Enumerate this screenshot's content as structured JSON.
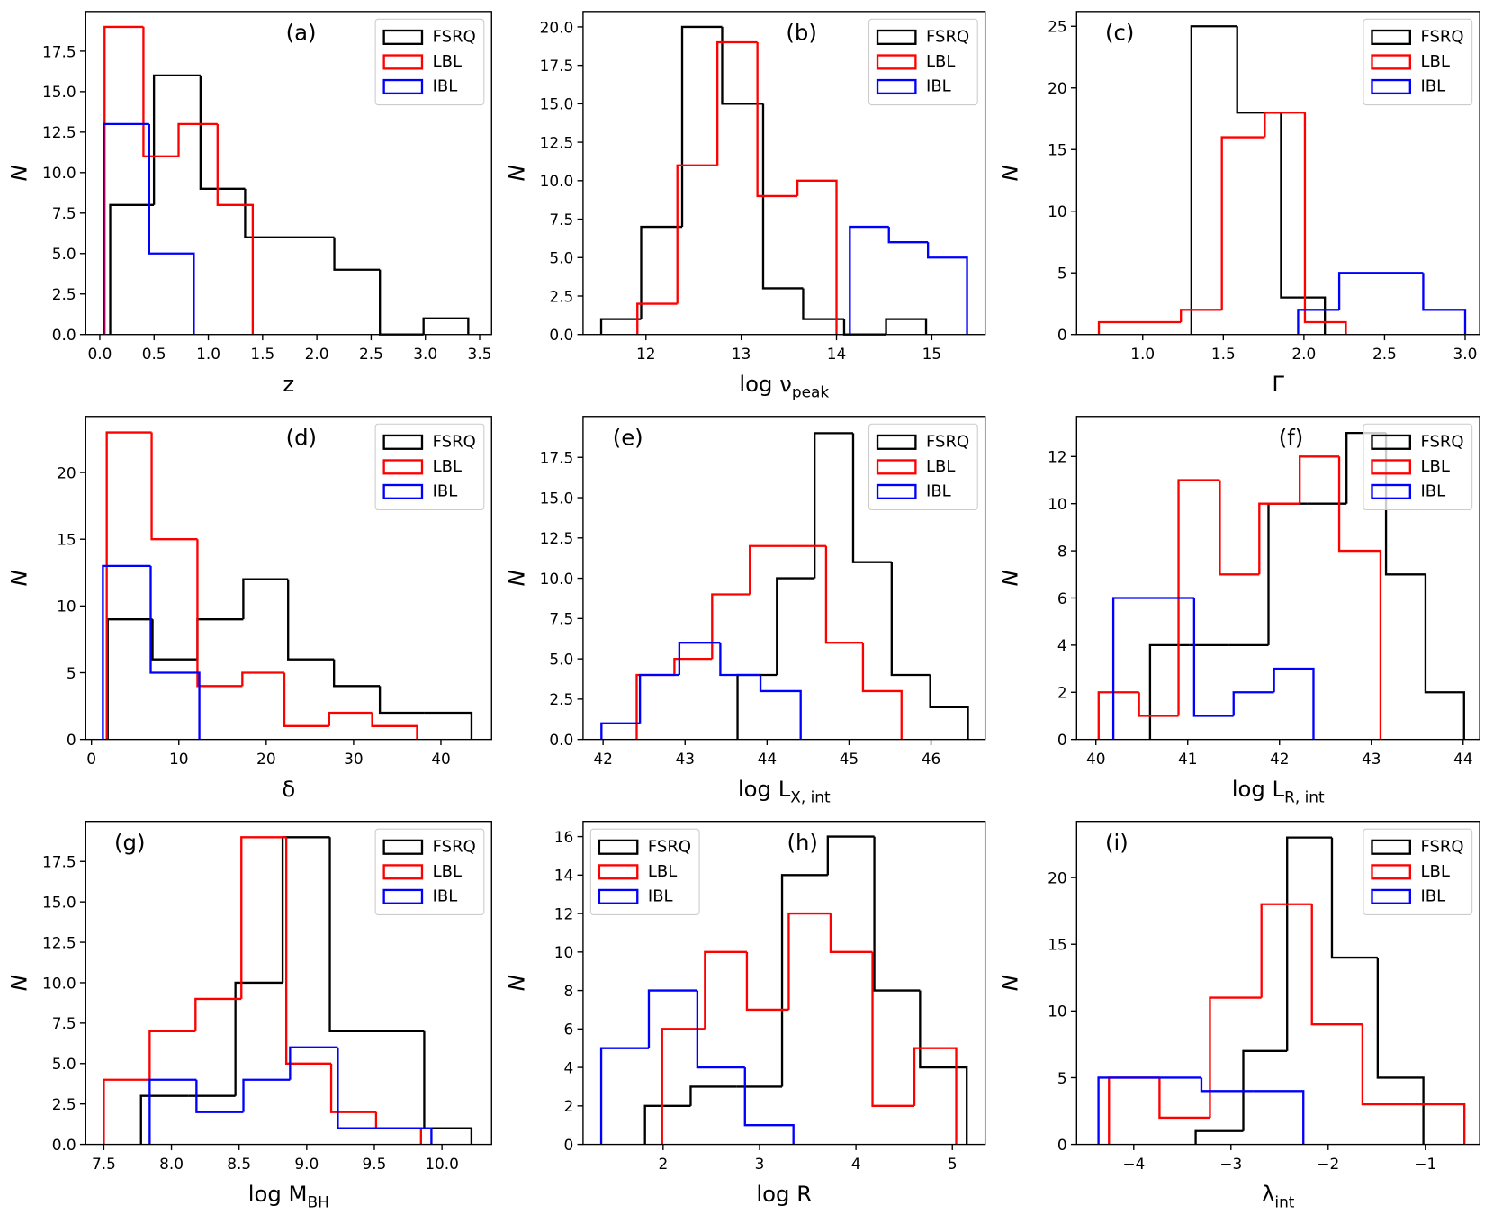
{
  "chart_data": [
    {
      "type": "histogram",
      "annotation": "(a)",
      "xlabel": "z",
      "ylabel": "N",
      "legend": "upper right",
      "xlim": [
        -0.13,
        3.61
      ],
      "ylim": [
        0,
        19.95
      ],
      "xticks": [
        {
          "value": 0,
          "label": "0.0"
        },
        {
          "value": 0.5,
          "label": "0.5"
        },
        {
          "value": 1,
          "label": "1.0"
        },
        {
          "value": 1.5,
          "label": "1.5"
        },
        {
          "value": 2,
          "label": "2.0"
        },
        {
          "value": 2.5,
          "label": "2.5"
        },
        {
          "value": 3,
          "label": "3.0"
        },
        {
          "value": 3.5,
          "label": "3.5"
        }
      ],
      "yticks": [
        {
          "value": 0,
          "label": "0.0"
        },
        {
          "value": 2.5,
          "label": "2.5"
        },
        {
          "value": 5,
          "label": "5.0"
        },
        {
          "value": 7.5,
          "label": "7.5"
        },
        {
          "value": 10,
          "label": "10.0"
        },
        {
          "value": 12.5,
          "label": "12.5"
        },
        {
          "value": 15,
          "label": "15.0"
        },
        {
          "value": 17.5,
          "label": "17.5"
        }
      ],
      "series": [
        {
          "name": "FSRQ",
          "color": "#000000",
          "bins": [
            0.096,
            0.499,
            0.928,
            1.339,
            1.75,
            2.161,
            2.581,
            2.983,
            3.395
          ],
          "values": [
            8,
            16,
            9,
            6,
            6,
            4,
            0,
            1
          ]
        },
        {
          "name": "LBL",
          "color": "#ff0000",
          "bins": [
            0.044,
            0.402,
            0.726,
            1.085,
            1.409
          ],
          "values": [
            19,
            11,
            13,
            8
          ]
        },
        {
          "name": "IBL",
          "color": "#0000ff",
          "bins": [
            0.035,
            0.455,
            0.866
          ],
          "values": [
            13,
            5
          ]
        }
      ]
    },
    {
      "type": "histogram",
      "annotation": "(b)",
      "xlabel": "log ν",
      "xlabel_sub": "peak",
      "ylabel": "N",
      "legend": "upper right",
      "xlim": [
        11.34,
        15.56
      ],
      "ylim": [
        0,
        21
      ],
      "xticks": [
        12,
        13,
        14,
        15
      ],
      "yticks": [
        {
          "value": 0,
          "label": "0.0"
        },
        {
          "value": 2.5,
          "label": "2.5"
        },
        {
          "value": 5,
          "label": "5.0"
        },
        {
          "value": 7.5,
          "label": "7.5"
        },
        {
          "value": 10,
          "label": "10.0"
        },
        {
          "value": 12.5,
          "label": "12.5"
        },
        {
          "value": 15,
          "label": "15.0"
        },
        {
          "value": 17.5,
          "label": "17.5"
        },
        {
          "value": 20,
          "label": "20.0"
        }
      ],
      "series": [
        {
          "name": "FSRQ",
          "color": "#000000",
          "bins": [
            11.53,
            11.95,
            12.38,
            12.8,
            13.23,
            13.65,
            14.08,
            14.52,
            14.94
          ],
          "values": [
            1,
            7,
            20,
            15,
            3,
            1,
            0,
            1
          ]
        },
        {
          "name": "LBL",
          "color": "#ff0000",
          "bins": [
            11.91,
            12.33,
            12.75,
            13.17,
            13.59,
            14.0
          ],
          "values": [
            2,
            11,
            19,
            9,
            10
          ]
        },
        {
          "name": "IBL",
          "color": "#0000ff",
          "bins": [
            14.14,
            14.55,
            14.96,
            15.37
          ],
          "values": [
            7,
            6,
            5
          ]
        }
      ]
    },
    {
      "type": "histogram",
      "annotation": "(c)",
      "xlabel": "Γ",
      "ylabel": "N",
      "legend": "upper right",
      "xlim": [
        0.59,
        3.09
      ],
      "ylim": [
        0,
        26.2
      ],
      "xticks": [
        {
          "value": 1,
          "label": "1.0"
        },
        {
          "value": 1.5,
          "label": "1.5"
        },
        {
          "value": 2,
          "label": "2.0"
        },
        {
          "value": 2.5,
          "label": "2.5"
        },
        {
          "value": 3,
          "label": "3.0"
        }
      ],
      "yticks": [
        0,
        5,
        10,
        15,
        20,
        25
      ],
      "series": [
        {
          "name": "FSRQ",
          "color": "#000000",
          "bins": [
            1.302,
            1.586,
            1.858,
            2.13
          ],
          "values": [
            25,
            18,
            3
          ]
        },
        {
          "name": "LBL",
          "color": "#ff0000",
          "bins": [
            0.728,
            0.982,
            1.237,
            1.491,
            1.757,
            2.006,
            2.26
          ],
          "values": [
            1,
            1,
            2,
            16,
            18,
            1
          ]
        },
        {
          "name": "IBL",
          "color": "#0000ff",
          "bins": [
            1.964,
            2.219,
            2.479,
            2.74,
            3.0
          ],
          "values": [
            2,
            5,
            5,
            2
          ]
        }
      ]
    },
    {
      "type": "histogram",
      "annotation": "(d)",
      "xlabel": "δ",
      "ylabel": "N",
      "legend": "upper right",
      "xlim": [
        -0.66,
        45.8
      ],
      "ylim": [
        0,
        24.2
      ],
      "xticks": [
        0,
        10,
        20,
        30,
        40
      ],
      "yticks": [
        0,
        5,
        10,
        15,
        20
      ],
      "series": [
        {
          "name": "FSRQ",
          "color": "#000000",
          "bins": [
            1.86,
            6.99,
            12.13,
            17.38,
            22.51,
            27.76,
            33.01,
            38.14,
            43.5
          ],
          "values": [
            9,
            6,
            9,
            12,
            6,
            4,
            2,
            2
          ]
        },
        {
          "name": "LBL",
          "color": "#ff0000",
          "bins": [
            1.75,
            6.89,
            12.13,
            17.27,
            22.08,
            27.21,
            32.13,
            37.27
          ],
          "values": [
            23,
            15,
            4,
            5,
            1,
            2,
            1
          ]
        },
        {
          "name": "IBL",
          "color": "#0000ff",
          "bins": [
            1.31,
            6.78,
            12.35
          ],
          "values": [
            13,
            5
          ]
        }
      ]
    },
    {
      "type": "histogram",
      "annotation": "(e)",
      "xlabel": "log L",
      "xlabel_sub": "X, int",
      "ylabel": "N",
      "legend": "upper right",
      "xlim": [
        41.756,
        46.66
      ],
      "ylim": [
        0,
        20.04
      ],
      "xticks": [
        42,
        43,
        44,
        45,
        46
      ],
      "yticks": [
        {
          "value": 0,
          "label": "0.0"
        },
        {
          "value": 2.5,
          "label": "2.5"
        },
        {
          "value": 5,
          "label": "5.0"
        },
        {
          "value": 7.5,
          "label": "7.5"
        },
        {
          "value": 10,
          "label": "10.0"
        },
        {
          "value": 12.5,
          "label": "12.5"
        },
        {
          "value": 15,
          "label": "15.0"
        },
        {
          "value": 17.5,
          "label": "17.5"
        }
      ],
      "series": [
        {
          "name": "FSRQ",
          "color": "#000000",
          "bins": [
            43.64,
            44.12,
            44.58,
            45.05,
            45.52,
            45.99,
            46.45
          ],
          "values": [
            4,
            10,
            19,
            11,
            4,
            2
          ]
        },
        {
          "name": "LBL",
          "color": "#ff0000",
          "bins": [
            42.41,
            42.87,
            43.33,
            43.79,
            44.26,
            44.72,
            45.17,
            45.64
          ],
          "values": [
            4,
            5,
            9,
            12,
            12,
            6,
            3
          ]
        },
        {
          "name": "IBL",
          "color": "#0000ff",
          "bins": [
            41.98,
            42.45,
            42.93,
            43.43,
            43.92,
            44.41
          ],
          "values": [
            1,
            4,
            6,
            4,
            3
          ]
        }
      ]
    },
    {
      "type": "histogram",
      "annotation": "(f)",
      "xlabel": "log L",
      "xlabel_sub": "R, int",
      "ylabel": "N",
      "legend": "upper right",
      "xlim": [
        39.79,
        44.18
      ],
      "ylim": [
        0,
        13.7
      ],
      "xticks": [
        40,
        41,
        42,
        43,
        44
      ],
      "yticks": [
        0,
        2,
        4,
        6,
        8,
        10,
        12
      ],
      "series": [
        {
          "name": "FSRQ",
          "color": "#000000",
          "bins": [
            40.59,
            41.02,
            41.45,
            41.88,
            42.3,
            42.73,
            43.16,
            43.59,
            44.01
          ],
          "values": [
            4,
            4,
            4,
            10,
            10,
            13,
            7,
            2
          ]
        },
        {
          "name": "LBL",
          "color": "#ff0000",
          "bins": [
            40.03,
            40.47,
            40.9,
            41.35,
            41.78,
            42.22,
            42.65,
            43.1
          ],
          "values": [
            2,
            1,
            11,
            7,
            10,
            12,
            8
          ]
        },
        {
          "name": "IBL",
          "color": "#0000ff",
          "bins": [
            40.19,
            40.63,
            41.07,
            41.5,
            41.94,
            42.37
          ],
          "values": [
            6,
            6,
            1,
            2,
            3
          ]
        }
      ]
    },
    {
      "type": "histogram",
      "annotation": "(g)",
      "xlabel": "log M",
      "xlabel_sub": "BH",
      "ylabel": "N",
      "legend": "upper right",
      "xlim": [
        7.366,
        10.367
      ],
      "ylim": [
        0,
        19.98
      ],
      "xticks": [
        {
          "value": 7.5,
          "label": "7.5"
        },
        {
          "value": 8,
          "label": "8.0"
        },
        {
          "value": 8.5,
          "label": "8.5"
        },
        {
          "value": 9,
          "label": "9.0"
        },
        {
          "value": 9.5,
          "label": "9.5"
        },
        {
          "value": 10,
          "label": "10.0"
        }
      ],
      "yticks": [
        {
          "value": 0,
          "label": "0.0"
        },
        {
          "value": 2.5,
          "label": "2.5"
        },
        {
          "value": 5,
          "label": "5.0"
        },
        {
          "value": 7.5,
          "label": "7.5"
        },
        {
          "value": 10,
          "label": "10.0"
        },
        {
          "value": 12.5,
          "label": "12.5"
        },
        {
          "value": 15,
          "label": "15.0"
        },
        {
          "value": 17.5,
          "label": "17.5"
        }
      ],
      "series": [
        {
          "name": "FSRQ",
          "color": "#000000",
          "bins": [
            7.775,
            8.124,
            8.473,
            8.822,
            9.171,
            9.52,
            9.869,
            10.218
          ],
          "values": [
            3,
            3,
            10,
            19,
            7,
            7,
            1
          ]
        },
        {
          "name": "LBL",
          "color": "#ff0000",
          "bins": [
            7.5,
            7.839,
            8.178,
            8.517,
            8.849,
            9.181,
            9.513,
            9.845
          ],
          "values": [
            4,
            7,
            9,
            19,
            5,
            2,
            1
          ]
        },
        {
          "name": "IBL",
          "color": "#0000ff",
          "bins": [
            7.839,
            8.185,
            8.532,
            8.877,
            9.23,
            9.576,
            9.922
          ],
          "values": [
            4,
            2,
            4,
            6,
            1,
            1
          ]
        }
      ]
    },
    {
      "type": "histogram",
      "annotation": "(h)",
      "xlabel": "log R",
      "ylabel": "N",
      "legend": "upper left",
      "xlim": [
        1.17,
        5.34
      ],
      "ylim": [
        0,
        16.79
      ],
      "xticks": [
        2,
        3,
        4,
        5
      ],
      "yticks": [
        0,
        2,
        4,
        6,
        8,
        10,
        12,
        14,
        16
      ],
      "series": [
        {
          "name": "FSRQ",
          "color": "#000000",
          "bins": [
            1.812,
            2.286,
            2.76,
            3.234,
            3.708,
            4.191,
            4.665,
            5.149
          ],
          "values": [
            2,
            3,
            3,
            14,
            16,
            8,
            4
          ]
        },
        {
          "name": "LBL",
          "color": "#ff0000",
          "bins": [
            1.99,
            2.434,
            2.869,
            3.303,
            3.737,
            4.172,
            4.606,
            5.04
          ],
          "values": [
            6,
            10,
            7,
            12,
            10,
            2,
            5
          ]
        },
        {
          "name": "IBL",
          "color": "#0000ff",
          "bins": [
            1.358,
            1.852,
            2.355,
            2.849,
            3.352
          ],
          "values": [
            5,
            8,
            4,
            1
          ]
        }
      ]
    },
    {
      "type": "histogram",
      "annotation": "(i)",
      "xlabel": "λ",
      "xlabel_sub": "int",
      "ylabel": "N",
      "legend": "upper right",
      "xlim": [
        -4.588,
        -0.441
      ],
      "ylim": [
        0,
        24.21
      ],
      "xticks": [
        {
          "value": -4,
          "label": "−4"
        },
        {
          "value": -3,
          "label": "−3"
        },
        {
          "value": -2,
          "label": "−2"
        },
        {
          "value": -1,
          "label": "−1"
        }
      ],
      "yticks": [
        0,
        5,
        10,
        15,
        20
      ],
      "series": [
        {
          "name": "FSRQ",
          "color": "#000000",
          "bins": [
            -3.363,
            -2.873,
            -2.422,
            -1.961,
            -1.49,
            -1.02
          ],
          "values": [
            1,
            7,
            23,
            14,
            5
          ]
        },
        {
          "name": "LBL",
          "color": "#ff0000",
          "bins": [
            -4.255,
            -3.735,
            -3.216,
            -2.686,
            -2.167,
            -1.647,
            -1.127,
            -0.598
          ],
          "values": [
            5,
            2,
            11,
            18,
            9,
            3,
            3
          ]
        },
        {
          "name": "IBL",
          "color": "#0000ff",
          "bins": [
            -4.363,
            -3.833,
            -3.304,
            -2.775,
            -2.255
          ],
          "values": [
            5,
            5,
            4,
            4
          ]
        }
      ]
    }
  ]
}
